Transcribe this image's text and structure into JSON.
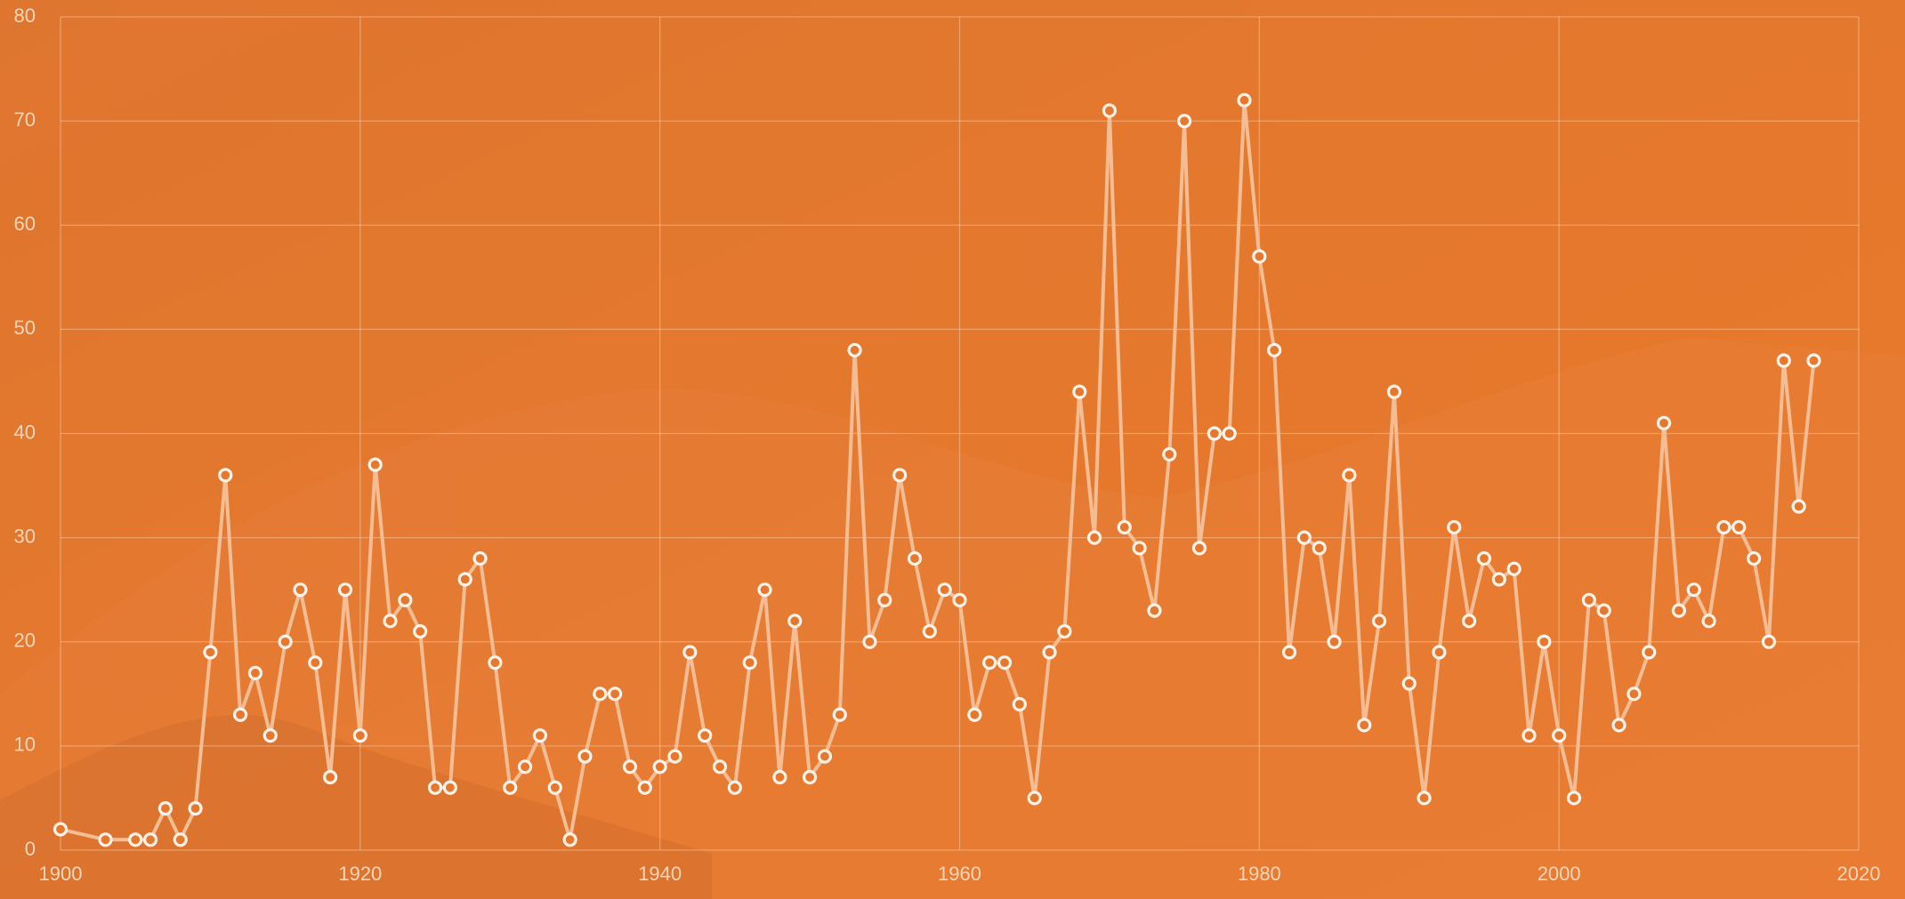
{
  "chart_data": {
    "type": "line",
    "x": [
      1900,
      1903,
      1905,
      1906,
      1907,
      1908,
      1909,
      1910,
      1911,
      1912,
      1913,
      1914,
      1915,
      1916,
      1917,
      1918,
      1919,
      1920,
      1921,
      1922,
      1923,
      1924,
      1925,
      1926,
      1927,
      1928,
      1929,
      1930,
      1931,
      1932,
      1933,
      1934,
      1935,
      1936,
      1937,
      1938,
      1939,
      1940,
      1941,
      1942,
      1943,
      1944,
      1945,
      1946,
      1947,
      1948,
      1949,
      1950,
      1951,
      1952,
      1953,
      1954,
      1955,
      1956,
      1957,
      1958,
      1959,
      1960,
      1961,
      1962,
      1963,
      1964,
      1965,
      1966,
      1967,
      1968,
      1969,
      1970,
      1971,
      1972,
      1973,
      1974,
      1975,
      1976,
      1977,
      1978,
      1979,
      1980,
      1981,
      1982,
      1983,
      1984,
      1985,
      1986,
      1987,
      1988,
      1989,
      1990,
      1991,
      1992,
      1993,
      1994,
      1995,
      1996,
      1997,
      1998,
      1999,
      2000,
      2001,
      2002,
      2003,
      2004,
      2005,
      2006,
      2007,
      2008,
      2009,
      2010,
      2011,
      2012,
      2013,
      2014,
      2015,
      2016,
      2017
    ],
    "values": [
      2,
      1,
      1,
      1,
      4,
      1,
      4,
      19,
      36,
      13,
      17,
      11,
      20,
      25,
      18,
      7,
      25,
      11,
      37,
      22,
      24,
      21,
      6,
      6,
      26,
      28,
      18,
      6,
      8,
      11,
      6,
      1,
      9,
      15,
      15,
      8,
      6,
      8,
      9,
      19,
      11,
      8,
      6,
      18,
      25,
      7,
      22,
      7,
      9,
      13,
      48,
      20,
      24,
      36,
      28,
      21,
      25,
      24,
      13,
      18,
      18,
      14,
      5,
      19,
      21,
      44,
      30,
      71,
      31,
      29,
      23,
      38,
      70,
      29,
      40,
      40,
      72,
      57,
      48,
      19,
      30,
      29,
      20,
      36,
      12,
      22,
      44,
      16,
      5,
      19,
      31,
      22,
      28,
      26,
      27,
      11,
      20,
      11,
      5,
      24,
      23,
      12,
      15,
      19,
      41,
      23,
      25,
      22,
      31,
      31,
      28,
      20,
      47,
      33,
      47
    ],
    "color": "#f5bd94",
    "xlim": [
      1900,
      2020
    ],
    "xticks": [
      1900,
      1920,
      1940,
      1960,
      1980,
      2000,
      2020
    ],
    "ylim": [
      0,
      80
    ],
    "yticks": [
      0,
      10,
      20,
      30,
      40,
      50,
      60,
      70,
      80
    ],
    "grid": true
  }
}
